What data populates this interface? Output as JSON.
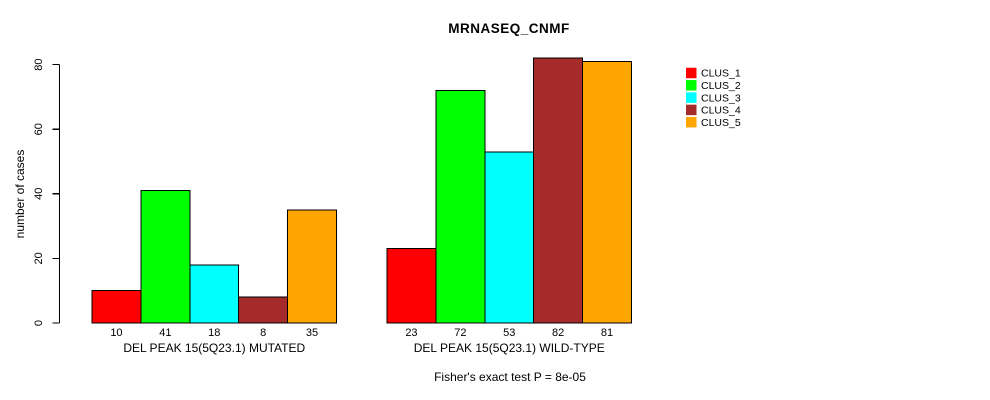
{
  "title": "MRNASEQ_CNMF",
  "footer": "Fisher's exact test P = 8e-05",
  "colors": {
    "background": "#FFFFFF",
    "bar_stroke": "#000000",
    "text": "#000000"
  },
  "legend": {
    "position": "right",
    "items": [
      {
        "label": "CLUS_1",
        "color": "#FF0000"
      },
      {
        "label": "CLUS_2",
        "color": "#00FF00"
      },
      {
        "label": "CLUS_3",
        "color": "#00FFFF"
      },
      {
        "label": "CLUS_4",
        "color": "#A52A2A"
      },
      {
        "label": "CLUS_5",
        "color": "#FFA500"
      }
    ]
  },
  "chart_data": {
    "type": "bar",
    "title": "MRNASEQ_CNMF",
    "xlabel": "",
    "ylabel": "number of cases",
    "ylim": [
      0,
      82
    ],
    "yticks": [
      0,
      20,
      40,
      60,
      80
    ],
    "grid": false,
    "legend_position": "right",
    "categories": [
      "DEL PEAK 15(5Q23.1) MUTATED",
      "DEL PEAK 15(5Q23.1) WILD-TYPE"
    ],
    "series": [
      {
        "name": "CLUS_1",
        "color": "#FF0000",
        "values": [
          10,
          23
        ]
      },
      {
        "name": "CLUS_2",
        "color": "#00FF00",
        "values": [
          41,
          72
        ]
      },
      {
        "name": "CLUS_3",
        "color": "#00FFFF",
        "values": [
          18,
          53
        ]
      },
      {
        "name": "CLUS_4",
        "color": "#A52A2A",
        "values": [
          8,
          82
        ]
      },
      {
        "name": "CLUS_5",
        "color": "#FFA500",
        "values": [
          35,
          81
        ]
      }
    ],
    "bar_value_labels_shown": true,
    "annotation": "Fisher's exact test P = 8e-05"
  }
}
